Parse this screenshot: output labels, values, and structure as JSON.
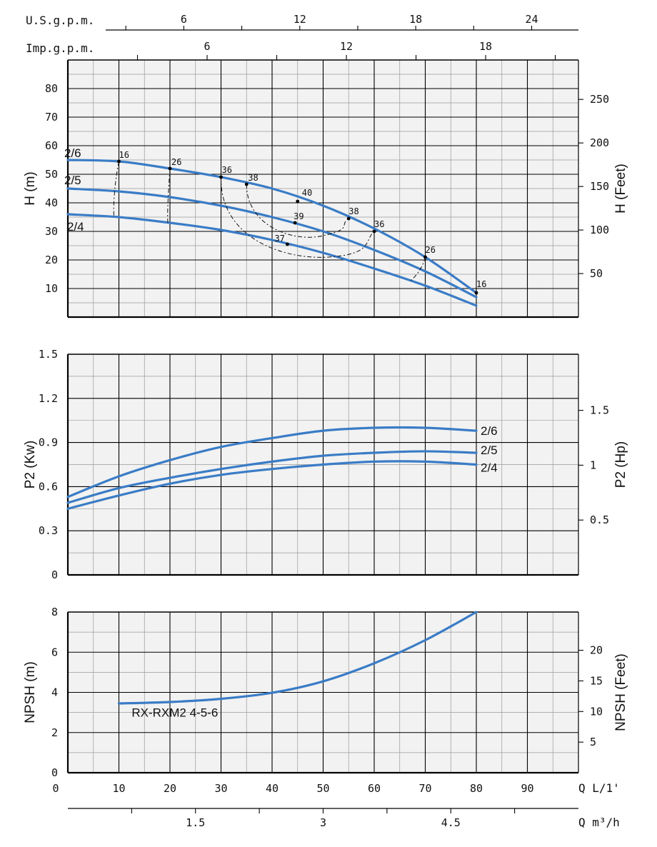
{
  "chart_data": {
    "type": "line",
    "x_unit_label": "Q L/1'",
    "x_ticks": [
      0,
      10,
      20,
      30,
      40,
      50,
      60,
      70,
      80,
      90
    ],
    "top_axes": [
      {
        "label": "U.S.g.p.m.",
        "ticks": [
          "6",
          "12",
          "18",
          "24"
        ],
        "values": [
          6,
          12,
          18,
          24
        ]
      },
      {
        "label": "Imp.g.p.m.",
        "ticks": [
          "6",
          "12",
          "18"
        ],
        "values": [
          6,
          12,
          18
        ]
      }
    ],
    "bottom_axis": {
      "label": "Q m³/h",
      "ticks": [
        "1.5",
        "3",
        "4.5"
      ],
      "values": [
        1.5,
        3,
        4.5
      ]
    },
    "series_colors": {
      "curve": "#3a7cc6",
      "grid_major": "#000000",
      "grid_minor": "#9a9a9a",
      "panel_bg": "#f2f2f2"
    },
    "panels": [
      {
        "id": "head",
        "ylabel": "H (m)",
        "ylabel_right": "H (Feet)",
        "ylim": [
          0,
          90
        ],
        "y_ticks": [
          10,
          20,
          30,
          40,
          50,
          60,
          70,
          80
        ],
        "y_ticks_right": [
          50,
          100,
          150,
          200,
          250
        ],
        "series": [
          {
            "name": "2/6",
            "x": [
              0,
              10,
              20,
              30,
              40,
              50,
              60,
              70,
              80
            ],
            "y": [
              55,
              54.5,
              52,
              49,
              45,
              39,
              31,
              21,
              8.5
            ]
          },
          {
            "name": "2/5",
            "x": [
              0,
              10,
              20,
              30,
              40,
              50,
              60,
              70,
              80
            ],
            "y": [
              45,
              44,
              42,
              39,
              35,
              30,
              23.5,
              16,
              7
            ]
          },
          {
            "name": "2/4",
            "x": [
              0,
              10,
              20,
              30,
              40,
              50,
              60,
              70,
              80
            ],
            "y": [
              36,
              35,
              33,
              30.5,
              27,
              22.5,
              17,
              11,
              4
            ]
          }
        ],
        "efficiency_points": [
          {
            "label": "16",
            "x": 10,
            "y": 54.5
          },
          {
            "label": "26",
            "x": 20,
            "y": 52
          },
          {
            "label": "36",
            "x": 30,
            "y": 49
          },
          {
            "label": "38",
            "x": 35,
            "y": 46.5
          },
          {
            "label": "40",
            "x": 45,
            "y": 40.5
          },
          {
            "label": "39",
            "x": 44.5,
            "y": 33
          },
          {
            "label": "38",
            "x": 55,
            "y": 34.5
          },
          {
            "label": "37",
            "x": 43,
            "y": 25.5
          },
          {
            "label": "36",
            "x": 60,
            "y": 30
          },
          {
            "label": "26",
            "x": 70,
            "y": 21
          },
          {
            "label": "16",
            "x": 80,
            "y": 8.5
          }
        ]
      },
      {
        "id": "power",
        "ylabel": "P2 (Kw)",
        "ylabel_right": "P2 (Hp)",
        "ylim": [
          0,
          1.5
        ],
        "y_ticks": [
          0,
          0.3,
          0.6,
          0.9,
          1.2,
          1.5
        ],
        "y_ticks_right": [
          0.5,
          1,
          1.5
        ],
        "series": [
          {
            "name": "2/6",
            "x": [
              0,
              10,
              20,
              30,
              40,
              50,
              60,
              70,
              80
            ],
            "y": [
              0.53,
              0.67,
              0.78,
              0.87,
              0.93,
              0.98,
              1.0,
              1.0,
              0.98
            ]
          },
          {
            "name": "2/5",
            "x": [
              0,
              10,
              20,
              30,
              40,
              50,
              60,
              70,
              80
            ],
            "y": [
              0.49,
              0.59,
              0.66,
              0.72,
              0.77,
              0.81,
              0.83,
              0.84,
              0.83
            ]
          },
          {
            "name": "2/4",
            "x": [
              0,
              10,
              20,
              30,
              40,
              50,
              60,
              70,
              80
            ],
            "y": [
              0.45,
              0.54,
              0.62,
              0.68,
              0.72,
              0.75,
              0.77,
              0.77,
              0.75
            ]
          }
        ]
      },
      {
        "id": "npsh",
        "ylabel": "NPSH (m)",
        "ylabel_right": "NPSH (Feet)",
        "ylim": [
          0,
          8
        ],
        "y_ticks": [
          0,
          2,
          4,
          6,
          8
        ],
        "y_ticks_right": [
          5,
          10,
          15,
          20
        ],
        "annotation": "RX-RXM2 4-5-6",
        "series": [
          {
            "name": "",
            "x": [
              10,
              20,
              30,
              40,
              50,
              60,
              70,
              80
            ],
            "y": [
              3.45,
              3.52,
              3.68,
              3.98,
              4.55,
              5.45,
              6.6,
              8.0
            ]
          }
        ]
      }
    ]
  }
}
